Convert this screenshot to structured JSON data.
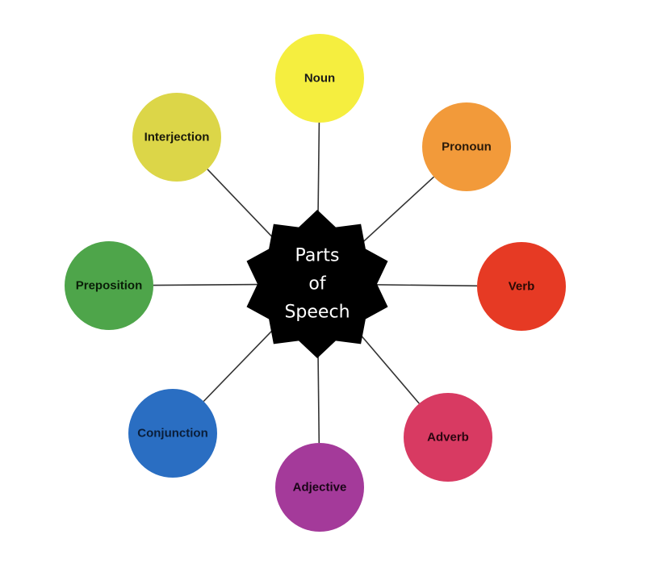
{
  "hub": {
    "lines": [
      "Parts",
      "of",
      "Speech"
    ],
    "color": "#000000",
    "text_color": "#ffffff"
  },
  "nodes": [
    {
      "id": "noun",
      "label": "Noun",
      "color": "#f5ee3f",
      "text_color": "#1a1a1a"
    },
    {
      "id": "pronoun",
      "label": "Pronoun",
      "color": "#f29a3a",
      "text_color": "#2a1a0a"
    },
    {
      "id": "verb",
      "label": "Verb",
      "color": "#e63a24",
      "text_color": "#2a0a05"
    },
    {
      "id": "adverb",
      "label": "Adverb",
      "color": "#d83a62",
      "text_color": "#2a0510"
    },
    {
      "id": "adjective",
      "label": "Adjective",
      "color": "#a43a9a",
      "text_color": "#1a0518"
    },
    {
      "id": "conjunction",
      "label": "Conjunction",
      "color": "#2a6ec2",
      "text_color": "#0a1e3a"
    },
    {
      "id": "preposition",
      "label": "Preposition",
      "color": "#4ea54a",
      "text_color": "#0a1e08"
    },
    {
      "id": "interjection",
      "label": "Interjection",
      "color": "#dcd648",
      "text_color": "#1a1a0a"
    }
  ],
  "connector_color": "#333333"
}
